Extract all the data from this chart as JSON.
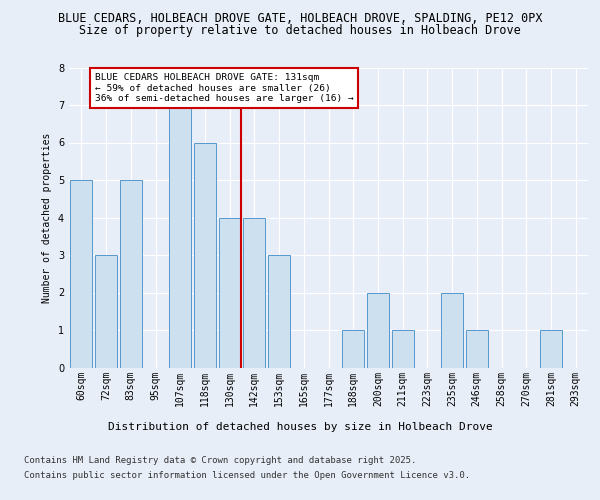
{
  "title_line1": "BLUE CEDARS, HOLBEACH DROVE GATE, HOLBEACH DROVE, SPALDING, PE12 0PX",
  "title_line2": "Size of property relative to detached houses in Holbeach Drove",
  "xlabel": "Distribution of detached houses by size in Holbeach Drove",
  "ylabel": "Number of detached properties",
  "categories": [
    "60sqm",
    "72sqm",
    "83sqm",
    "95sqm",
    "107sqm",
    "118sqm",
    "130sqm",
    "142sqm",
    "153sqm",
    "165sqm",
    "177sqm",
    "188sqm",
    "200sqm",
    "211sqm",
    "223sqm",
    "235sqm",
    "246sqm",
    "258sqm",
    "270sqm",
    "281sqm",
    "293sqm"
  ],
  "values": [
    5,
    3,
    5,
    0,
    7,
    6,
    4,
    4,
    3,
    0,
    0,
    1,
    2,
    1,
    0,
    2,
    1,
    0,
    0,
    1,
    0
  ],
  "bar_color": "#cce0f0",
  "bar_edge_color": "#5599cc",
  "highlight_index": 6,
  "highlight_line_color": "#cc0000",
  "ylim": [
    0,
    8
  ],
  "yticks": [
    0,
    1,
    2,
    3,
    4,
    5,
    6,
    7,
    8
  ],
  "annotation_text": "BLUE CEDARS HOLBEACH DROVE GATE: 131sqm\n← 59% of detached houses are smaller (26)\n36% of semi-detached houses are larger (16) →",
  "annotation_box_color": "#ffffff",
  "annotation_border_color": "#cc0000",
  "footer_line1": "Contains HM Land Registry data © Crown copyright and database right 2025.",
  "footer_line2": "Contains public sector information licensed under the Open Government Licence v3.0.",
  "background_color": "#e8eef8",
  "grid_color": "#ffffff",
  "title_fontsize": 8.5,
  "subtitle_fontsize": 8.5,
  "tick_fontsize": 7,
  "footer_fontsize": 6.5,
  "xlabel_fontsize": 8,
  "ylabel_fontsize": 7
}
